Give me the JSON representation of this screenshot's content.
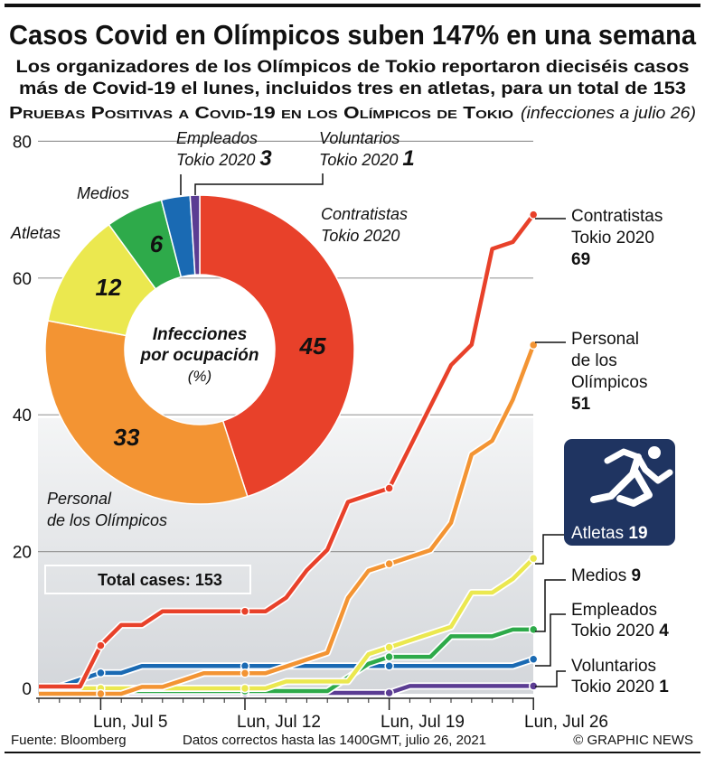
{
  "header": {
    "title": "Casos Covid en Olímpicos suben 147% en una semana",
    "subtitle_lines": [
      "Los organizadores de los Olímpicos de Tokio reportaron dieciséis casos",
      "más de Covid-19 el lunes, incluidos tres en atletas, para un total de 153"
    ],
    "section_title": "Pruebas Positivas a Covid-19 en los Olímpicos de Tokio",
    "section_note": "(infecciones a julio 26)"
  },
  "total_box": "Total cases: 153",
  "right_labels": {
    "contratistas": [
      "Contratistas",
      "Tokio 2020",
      "69"
    ],
    "personal": [
      "Personal",
      "de los",
      "Olímpicos",
      "51"
    ],
    "atletas": [
      "Atletas",
      "19"
    ],
    "medios": [
      "Medios",
      "9"
    ],
    "empleados": [
      "Empleados",
      "Tokio 2020",
      "4"
    ],
    "voluntarios": [
      "Voluntarios",
      "Tokio 2020",
      "1"
    ]
  },
  "atletas_icon": "runner-icon",
  "footer": {
    "source": "Fuente: Bloomberg",
    "note": "Datos correctos hasta las 1400GMT, julio 26, 2021",
    "credit": "© GRAPHIC NEWS"
  },
  "chart_data": [
    {
      "type": "line",
      "x": [
        "Jul 2",
        "Jul 3",
        "Jul 4",
        "Jul 5",
        "Jul 6",
        "Jul 7",
        "Jul 8",
        "Jul 9",
        "Jul 10",
        "Jul 11",
        "Jul 12",
        "Jul 13",
        "Jul 14",
        "Jul 15",
        "Jul 16",
        "Jul 17",
        "Jul 18",
        "Jul 19",
        "Jul 20",
        "Jul 21",
        "Jul 22",
        "Jul 23",
        "Jul 24",
        "Jul 25",
        "Jul 26"
      ],
      "x_tick_labels": [
        "Lun, Jul 5",
        "Lun, Jul 12",
        "Lun, Jul 19",
        "Lun, Jul 26"
      ],
      "y_ticks": [
        0,
        20,
        40,
        60,
        80
      ],
      "ylim": [
        0,
        80
      ],
      "grid": true,
      "series": [
        {
          "name": "Voluntarios Tokio 2020",
          "color": "#5b3c93",
          "values": [
            0,
            0,
            0,
            0,
            0,
            0,
            0,
            0,
            0,
            0,
            0,
            0,
            0,
            0,
            0,
            0,
            0,
            0,
            1,
            1,
            1,
            1,
            1,
            1,
            1
          ]
        },
        {
          "name": "Empleados Tokio 2020",
          "color": "#1a6ab3",
          "values": [
            0,
            0,
            1,
            2,
            2,
            3,
            3,
            3,
            3,
            3,
            3,
            3,
            3,
            3,
            3,
            3,
            3,
            3,
            3,
            3,
            3,
            3,
            3,
            3,
            4
          ]
        },
        {
          "name": "Medios",
          "color": "#2eaa4a",
          "values": [
            0,
            0,
            0,
            0,
            0,
            0,
            0,
            0,
            0,
            0,
            0,
            0,
            0,
            0,
            0,
            2,
            4,
            5,
            5,
            5,
            8,
            8,
            8,
            9,
            9
          ]
        },
        {
          "name": "Atletas",
          "color": "#ebe84f",
          "values": [
            0,
            0,
            0,
            0,
            0,
            0,
            0,
            0,
            0,
            0,
            0,
            0,
            1,
            1,
            1,
            1,
            5,
            6,
            7,
            8,
            9,
            14,
            14,
            16,
            19
          ]
        },
        {
          "name": "Personal de los Olímpicos",
          "color": "#f39433",
          "values": [
            0,
            0,
            0,
            0,
            0,
            1,
            1,
            2,
            3,
            3,
            3,
            3,
            4,
            5,
            6,
            14,
            18,
            19,
            20,
            21,
            25,
            35,
            37,
            43,
            51
          ]
        },
        {
          "name": "Contratistas Tokio 2020",
          "color": "#e8412a",
          "values": [
            0,
            0,
            0,
            6,
            9,
            9,
            11,
            11,
            11,
            11,
            11,
            11,
            13,
            17,
            20,
            27,
            28,
            29,
            35,
            41,
            47,
            50,
            64,
            65,
            69
          ]
        }
      ]
    },
    {
      "type": "pie",
      "title_lines": [
        "Infecciones",
        "por ocupación",
        "(%)"
      ],
      "slices": [
        {
          "label": [
            "Contratistas",
            "Tokio 2020"
          ],
          "value": 45,
          "color": "#e8412a"
        },
        {
          "label": [
            "Personal",
            "de los Olímpicos"
          ],
          "value": 33,
          "color": "#f39433"
        },
        {
          "label": [
            "Atletas"
          ],
          "value": 12,
          "color": "#ebe84f"
        },
        {
          "label": [
            "Medios"
          ],
          "value": 6,
          "color": "#2eaa4a"
        },
        {
          "label": [
            "Empleados",
            "Tokio 2020"
          ],
          "value": 3,
          "color": "#1a6ab3"
        },
        {
          "label": [
            "Voluntarios",
            "Tokio 2020"
          ],
          "value": 1,
          "color": "#5b3c93"
        }
      ]
    }
  ]
}
